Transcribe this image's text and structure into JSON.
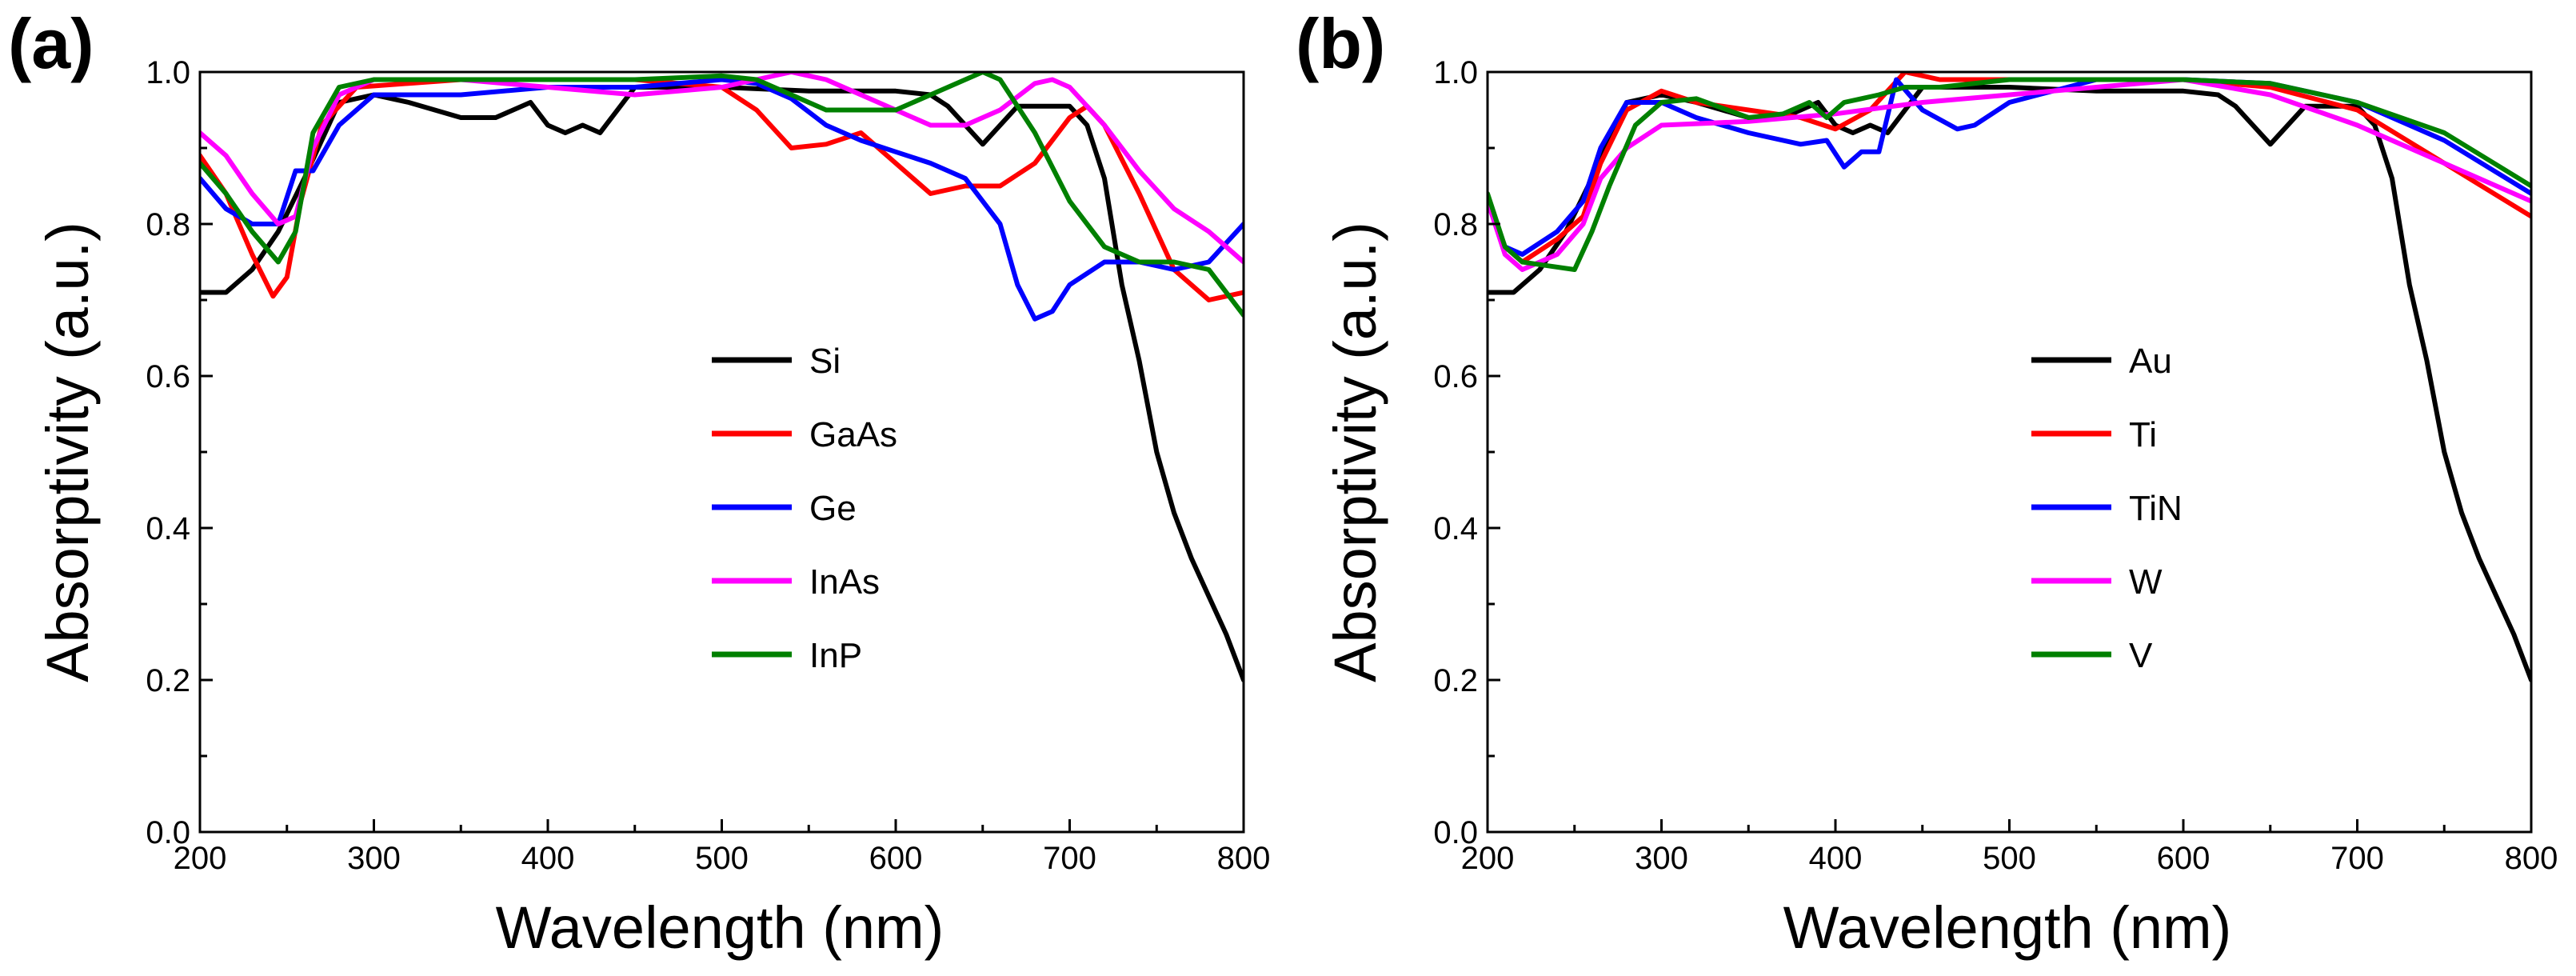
{
  "chart_data": [
    {
      "type": "line",
      "panel_label": "(a)",
      "xlabel": "Wavelength (nm)",
      "ylabel": "Absorptivity (a.u.)",
      "xlim": [
        200,
        800
      ],
      "ylim": [
        0,
        1.0
      ],
      "xticks": [
        "200",
        "300",
        "400",
        "500",
        "600",
        "700",
        "800"
      ],
      "yticks": [
        "0.0",
        "0.2",
        "0.4",
        "0.6",
        "0.8",
        "1.0"
      ],
      "grid": false,
      "legend_position": "center-right",
      "series": [
        {
          "name": "Si",
          "color": "#000000",
          "x": [
            200,
            215,
            230,
            245,
            260,
            280,
            300,
            320,
            350,
            370,
            390,
            400,
            410,
            420,
            430,
            450,
            500,
            550,
            600,
            620,
            630,
            640,
            650,
            670,
            700,
            710,
            720,
            730,
            740,
            750,
            760,
            770,
            780,
            790,
            800
          ],
          "y": [
            0.71,
            0.71,
            0.74,
            0.79,
            0.86,
            0.96,
            0.97,
            0.96,
            0.94,
            0.94,
            0.96,
            0.93,
            0.92,
            0.93,
            0.92,
            0.98,
            0.98,
            0.975,
            0.975,
            0.97,
            0.955,
            0.93,
            0.905,
            0.955,
            0.955,
            0.93,
            0.86,
            0.72,
            0.62,
            0.5,
            0.42,
            0.36,
            0.31,
            0.26,
            0.2
          ]
        },
        {
          "name": "GaAs",
          "color": "#ff0000",
          "x": [
            200,
            215,
            230,
            242,
            250,
            258,
            270,
            290,
            350,
            450,
            500,
            520,
            540,
            560,
            580,
            600,
            620,
            640,
            660,
            680,
            700,
            710,
            720,
            740,
            760,
            780,
            800
          ],
          "y": [
            0.89,
            0.84,
            0.76,
            0.705,
            0.73,
            0.83,
            0.93,
            0.98,
            0.99,
            0.99,
            0.98,
            0.95,
            0.9,
            0.905,
            0.92,
            0.88,
            0.84,
            0.85,
            0.85,
            0.88,
            0.94,
            0.955,
            0.93,
            0.84,
            0.74,
            0.7,
            0.71
          ]
        },
        {
          "name": "Ge",
          "color": "#0000ff",
          "x": [
            200,
            215,
            230,
            245,
            255,
            265,
            280,
            300,
            350,
            400,
            450,
            500,
            520,
            540,
            560,
            580,
            600,
            620,
            640,
            660,
            670,
            680,
            690,
            700,
            720,
            740,
            760,
            780,
            800
          ],
          "y": [
            0.86,
            0.82,
            0.8,
            0.8,
            0.87,
            0.87,
            0.93,
            0.97,
            0.97,
            0.98,
            0.98,
            0.99,
            0.985,
            0.965,
            0.93,
            0.91,
            0.895,
            0.88,
            0.86,
            0.8,
            0.72,
            0.675,
            0.685,
            0.72,
            0.75,
            0.75,
            0.74,
            0.75,
            0.8
          ]
        },
        {
          "name": "InAs",
          "color": "#ff00ff",
          "x": [
            200,
            215,
            230,
            245,
            255,
            265,
            280,
            300,
            350,
            400,
            450,
            500,
            520,
            540,
            560,
            580,
            600,
            620,
            640,
            660,
            680,
            690,
            700,
            720,
            740,
            760,
            780,
            800
          ],
          "y": [
            0.92,
            0.89,
            0.84,
            0.8,
            0.81,
            0.9,
            0.97,
            0.99,
            0.99,
            0.98,
            0.97,
            0.98,
            0.99,
            1.0,
            0.99,
            0.97,
            0.95,
            0.93,
            0.93,
            0.95,
            0.985,
            0.99,
            0.98,
            0.93,
            0.87,
            0.82,
            0.79,
            0.75
          ]
        },
        {
          "name": "InP",
          "color": "#008000",
          "x": [
            200,
            215,
            230,
            245,
            255,
            265,
            280,
            300,
            350,
            400,
            450,
            500,
            520,
            540,
            560,
            580,
            600,
            620,
            640,
            650,
            660,
            680,
            700,
            720,
            740,
            760,
            780,
            800
          ],
          "y": [
            0.88,
            0.84,
            0.79,
            0.75,
            0.79,
            0.92,
            0.98,
            0.99,
            0.99,
            0.99,
            0.99,
            0.995,
            0.99,
            0.97,
            0.95,
            0.95,
            0.95,
            0.97,
            0.99,
            1.0,
            0.99,
            0.92,
            0.83,
            0.77,
            0.75,
            0.75,
            0.74,
            0.68
          ]
        }
      ]
    },
    {
      "type": "line",
      "panel_label": "(b)",
      "xlabel": "Wavelength (nm)",
      "ylabel": "Absorptivity (a.u.)",
      "xlim": [
        200,
        800
      ],
      "ylim": [
        0,
        1.0
      ],
      "xticks": [
        "200",
        "300",
        "400",
        "500",
        "600",
        "700",
        "800"
      ],
      "yticks": [
        "0.0",
        "0.2",
        "0.4",
        "0.6",
        "0.8",
        "1.0"
      ],
      "grid": false,
      "legend_position": "center-right",
      "series": [
        {
          "name": "Au",
          "color": "#000000",
          "x": [
            200,
            215,
            230,
            245,
            260,
            280,
            300,
            320,
            350,
            370,
            390,
            400,
            410,
            420,
            430,
            450,
            500,
            550,
            600,
            620,
            630,
            640,
            650,
            670,
            700,
            710,
            720,
            730,
            740,
            750,
            760,
            770,
            780,
            790,
            800
          ],
          "y": [
            0.71,
            0.71,
            0.74,
            0.79,
            0.86,
            0.96,
            0.97,
            0.96,
            0.94,
            0.94,
            0.96,
            0.93,
            0.92,
            0.93,
            0.92,
            0.98,
            0.98,
            0.975,
            0.975,
            0.97,
            0.955,
            0.93,
            0.905,
            0.955,
            0.955,
            0.93,
            0.86,
            0.72,
            0.62,
            0.5,
            0.42,
            0.36,
            0.31,
            0.26,
            0.2
          ]
        },
        {
          "name": "Ti",
          "color": "#ff0000",
          "x": [
            200,
            210,
            220,
            240,
            255,
            265,
            280,
            300,
            320,
            350,
            380,
            400,
            420,
            440,
            460,
            500,
            600,
            650,
            700,
            750,
            800
          ],
          "y": [
            0.83,
            0.77,
            0.75,
            0.78,
            0.81,
            0.88,
            0.95,
            0.975,
            0.96,
            0.95,
            0.94,
            0.925,
            0.95,
            1.0,
            0.99,
            0.99,
            0.99,
            0.98,
            0.95,
            0.88,
            0.81
          ]
        },
        {
          "name": "TiN",
          "color": "#0000ff",
          "x": [
            200,
            210,
            220,
            240,
            255,
            265,
            280,
            300,
            320,
            350,
            380,
            395,
            405,
            415,
            425,
            435,
            450,
            470,
            480,
            500,
            550,
            600,
            650,
            700,
            750,
            800
          ],
          "y": [
            0.83,
            0.77,
            0.76,
            0.79,
            0.83,
            0.9,
            0.96,
            0.96,
            0.94,
            0.92,
            0.905,
            0.91,
            0.875,
            0.895,
            0.895,
            0.99,
            0.95,
            0.925,
            0.93,
            0.96,
            0.99,
            0.99,
            0.985,
            0.96,
            0.91,
            0.84
          ]
        },
        {
          "name": "W",
          "color": "#ff00ff",
          "x": [
            200,
            210,
            220,
            240,
            255,
            265,
            280,
            300,
            350,
            400,
            450,
            500,
            550,
            600,
            650,
            700,
            750,
            800
          ],
          "y": [
            0.83,
            0.76,
            0.74,
            0.76,
            0.8,
            0.86,
            0.9,
            0.93,
            0.935,
            0.945,
            0.96,
            0.97,
            0.98,
            0.99,
            0.97,
            0.93,
            0.88,
            0.83
          ]
        },
        {
          "name": "V",
          "color": "#008000",
          "x": [
            200,
            210,
            220,
            235,
            250,
            260,
            270,
            285,
            300,
            320,
            350,
            370,
            385,
            395,
            405,
            415,
            425,
            440,
            460,
            500,
            550,
            600,
            650,
            700,
            750,
            800
          ],
          "y": [
            0.84,
            0.77,
            0.75,
            0.745,
            0.74,
            0.79,
            0.85,
            0.93,
            0.96,
            0.965,
            0.94,
            0.945,
            0.96,
            0.94,
            0.96,
            0.965,
            0.97,
            0.98,
            0.98,
            0.99,
            0.99,
            0.99,
            0.985,
            0.96,
            0.92,
            0.85
          ]
        }
      ]
    }
  ]
}
